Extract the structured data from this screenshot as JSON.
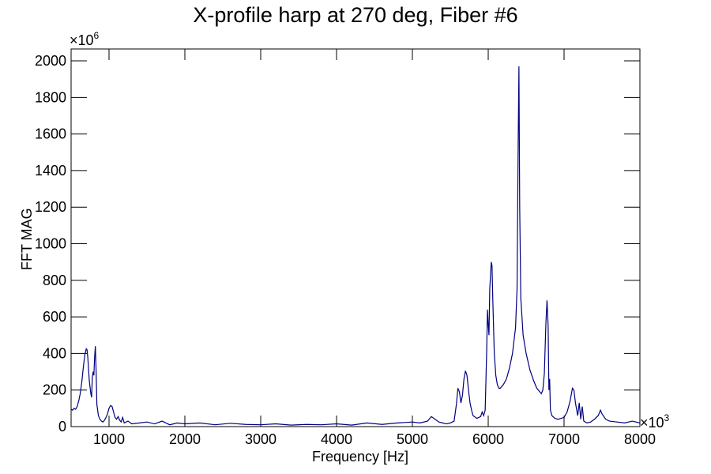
{
  "chart_data": {
    "type": "line",
    "title": "X-profile harp at 270 deg, Fiber #6",
    "x_label": "Frequency [Hz]",
    "y_label": "FFT MAG",
    "x_scale": {
      "base": "×10",
      "exponent": "3"
    },
    "y_scale": {
      "base": "×10",
      "exponent": "6"
    },
    "xlim": [
      500,
      8000
    ],
    "ylim": [
      0,
      2065
    ],
    "xticks": [
      1000,
      2000,
      3000,
      4000,
      5000,
      6000,
      7000,
      8000
    ],
    "yticks": [
      0,
      200,
      400,
      600,
      800,
      1000,
      1200,
      1400,
      1600,
      1800,
      2000
    ],
    "x": [
      500,
      520,
      540,
      560,
      580,
      600,
      620,
      640,
      660,
      680,
      700,
      710,
      720,
      740,
      760,
      770,
      780,
      790,
      800,
      810,
      820,
      830,
      840,
      860,
      880,
      900,
      920,
      940,
      960,
      980,
      1000,
      1020,
      1040,
      1060,
      1080,
      1100,
      1120,
      1140,
      1160,
      1180,
      1200,
      1250,
      1300,
      1400,
      1500,
      1600,
      1700,
      1800,
      1900,
      2000,
      2200,
      2400,
      2600,
      2800,
      3000,
      3200,
      3400,
      3600,
      3800,
      4000,
      4200,
      4400,
      4600,
      4800,
      5000,
      5100,
      5200,
      5250,
      5300,
      5350,
      5400,
      5450,
      5500,
      5550,
      5580,
      5600,
      5620,
      5640,
      5660,
      5680,
      5700,
      5720,
      5740,
      5760,
      5780,
      5800,
      5850,
      5900,
      5920,
      5940,
      5960,
      5980,
      5990,
      6000,
      6010,
      6020,
      6040,
      6050,
      6060,
      6080,
      6100,
      6120,
      6140,
      6160,
      6200,
      6240,
      6280,
      6320,
      6360,
      6380,
      6395,
      6405,
      6415,
      6430,
      6460,
      6500,
      6550,
      6600,
      6640,
      6680,
      6700,
      6720,
      6740,
      6760,
      6775,
      6790,
      6800,
      6810,
      6820,
      6840,
      6880,
      6920,
      6960,
      7000,
      7040,
      7080,
      7110,
      7130,
      7150,
      7180,
      7200,
      7220,
      7240,
      7260,
      7300,
      7350,
      7400,
      7450,
      7480,
      7500,
      7550,
      7600,
      7700,
      7800,
      7900,
      8000
    ],
    "series": [
      {
        "color": "#000080",
        "values": [
          95,
          90,
          100,
          95,
          110,
          140,
          180,
          240,
          320,
          390,
          425,
          420,
          380,
          250,
          180,
          160,
          270,
          300,
          280,
          380,
          440,
          300,
          120,
          60,
          40,
          30,
          25,
          35,
          50,
          70,
          100,
          115,
          110,
          80,
          50,
          40,
          55,
          35,
          25,
          50,
          20,
          30,
          15,
          20,
          25,
          15,
          30,
          10,
          20,
          15,
          20,
          10,
          18,
          12,
          10,
          15,
          8,
          12,
          10,
          15,
          8,
          20,
          12,
          20,
          25,
          20,
          30,
          55,
          40,
          25,
          20,
          15,
          20,
          30,
          120,
          210,
          190,
          130,
          170,
          260,
          305,
          280,
          200,
          130,
          90,
          60,
          45,
          55,
          80,
          60,
          90,
          420,
          640,
          560,
          500,
          750,
          900,
          880,
          700,
          400,
          280,
          230,
          210,
          210,
          230,
          260,
          320,
          400,
          540,
          750,
          1550,
          1970,
          1200,
          700,
          500,
          400,
          310,
          250,
          210,
          190,
          180,
          200,
          290,
          560,
          690,
          550,
          200,
          260,
          90,
          60,
          45,
          40,
          45,
          50,
          80,
          140,
          210,
          200,
          130,
          60,
          130,
          40,
          110,
          30,
          20,
          25,
          40,
          60,
          90,
          70,
          40,
          30,
          25,
          20,
          30,
          20
        ]
      }
    ]
  }
}
